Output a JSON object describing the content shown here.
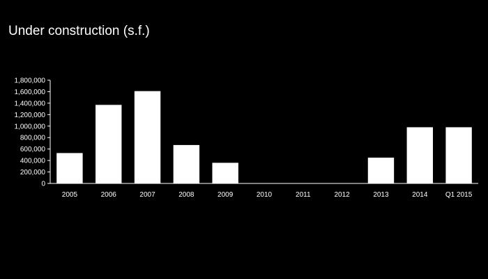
{
  "chart_data": {
    "type": "bar",
    "title": "Under construction (s.f.)",
    "xlabel": "",
    "ylabel": "",
    "categories": [
      "2005",
      "2006",
      "2007",
      "2008",
      "2009",
      "2010",
      "2011",
      "2012",
      "2013",
      "2014",
      "Q1 2015"
    ],
    "values": [
      530000,
      1370000,
      1610000,
      670000,
      360000,
      0,
      0,
      0,
      450000,
      980000,
      980000
    ],
    "ylim": [
      0,
      1800000
    ],
    "yticks": [
      0,
      200000,
      400000,
      600000,
      800000,
      1000000,
      1200000,
      1400000,
      1600000,
      1800000
    ],
    "ytick_labels": [
      "0",
      "200,000",
      "400,000",
      "600,000",
      "800,000",
      "1,000,000",
      "1,200,000",
      "1,400,000",
      "1,600,000",
      "1,800,000"
    ],
    "grid": false,
    "legend": "none",
    "colors": {
      "background": "#000000",
      "bar": "#ffffff",
      "axis": "#ffffff",
      "text": "#ffffff"
    }
  }
}
